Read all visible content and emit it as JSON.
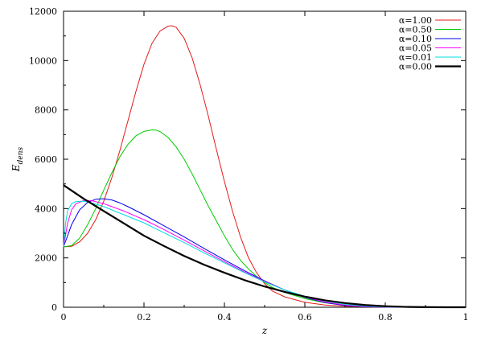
{
  "chart_data": {
    "type": "line",
    "title": "",
    "xlabel": "z",
    "ylabel": "E",
    "ylabel_sub": "dens",
    "xlim": [
      0,
      1
    ],
    "ylim": [
      0,
      12000
    ],
    "x_ticks": [
      0,
      0.2,
      0.4,
      0.6,
      0.8,
      1
    ],
    "x_tick_labels": [
      "0",
      "0.2",
      "0.4",
      "0.6",
      "0.8",
      "1"
    ],
    "y_ticks": [
      0,
      2000,
      4000,
      6000,
      8000,
      10000,
      12000
    ],
    "y_tick_labels": [
      "0",
      "2000",
      "4000",
      "6000",
      "8000",
      "10000",
      "12000"
    ],
    "grid": false,
    "legend_position": "top-right",
    "series": [
      {
        "name": "α=1.00",
        "color": "#e41a1c",
        "x": [
          0,
          0.02,
          0.04,
          0.06,
          0.08,
          0.1,
          0.12,
          0.14,
          0.16,
          0.18,
          0.2,
          0.22,
          0.24,
          0.26,
          0.27,
          0.28,
          0.3,
          0.32,
          0.34,
          0.36,
          0.38,
          0.4,
          0.42,
          0.44,
          0.46,
          0.48,
          0.5,
          0.52,
          0.55,
          0.6,
          0.65,
          0.7,
          0.75,
          0.8,
          0.85,
          0.9,
          1.0
        ],
        "y": [
          2450,
          2470,
          2650,
          3000,
          3550,
          4300,
          5250,
          6350,
          7550,
          8750,
          9850,
          10700,
          11200,
          11400,
          11410,
          11350,
          10900,
          10100,
          9000,
          7750,
          6400,
          5100,
          3900,
          2850,
          2000,
          1400,
          950,
          650,
          420,
          200,
          90,
          40,
          15,
          5,
          2,
          0,
          0
        ]
      },
      {
        "name": "α=0.50",
        "color": "#00cc00",
        "x": [
          0,
          0.02,
          0.04,
          0.06,
          0.08,
          0.1,
          0.12,
          0.14,
          0.16,
          0.18,
          0.2,
          0.22,
          0.23,
          0.24,
          0.26,
          0.28,
          0.3,
          0.32,
          0.34,
          0.36,
          0.38,
          0.4,
          0.42,
          0.44,
          0.46,
          0.48,
          0.5,
          0.52,
          0.55,
          0.6,
          0.65,
          0.7,
          0.75,
          0.8,
          0.85,
          0.9,
          1.0
        ],
        "y": [
          2450,
          2500,
          2800,
          3350,
          4000,
          4750,
          5450,
          6100,
          6600,
          6950,
          7130,
          7190,
          7180,
          7120,
          6880,
          6500,
          6000,
          5400,
          4750,
          4100,
          3500,
          2900,
          2350,
          1900,
          1550,
          1250,
          1000,
          800,
          600,
          350,
          180,
          80,
          30,
          10,
          3,
          0,
          0
        ]
      },
      {
        "name": "α=0.10",
        "color": "#0000ee",
        "x": [
          0,
          0.01,
          0.02,
          0.04,
          0.06,
          0.08,
          0.1,
          0.12,
          0.14,
          0.16,
          0.2,
          0.25,
          0.3,
          0.35,
          0.4,
          0.45,
          0.5,
          0.55,
          0.6,
          0.65,
          0.7,
          0.75,
          0.8,
          0.85,
          1.0
        ],
        "y": [
          2450,
          2900,
          3350,
          3950,
          4250,
          4380,
          4400,
          4350,
          4230,
          4080,
          3750,
          3300,
          2850,
          2380,
          1920,
          1480,
          1070,
          700,
          400,
          190,
          70,
          20,
          5,
          0,
          0
        ]
      },
      {
        "name": "α=0.05",
        "color": "#ff00ff",
        "x": [
          0,
          0.01,
          0.02,
          0.03,
          0.05,
          0.07,
          0.1,
          0.15,
          0.2,
          0.25,
          0.3,
          0.35,
          0.4,
          0.45,
          0.5,
          0.55,
          0.6,
          0.65,
          0.7,
          0.75,
          0.8,
          0.85,
          1.0
        ],
        "y": [
          2450,
          3400,
          3950,
          4180,
          4330,
          4320,
          4200,
          3900,
          3550,
          3150,
          2720,
          2280,
          1850,
          1430,
          1050,
          700,
          420,
          210,
          90,
          30,
          8,
          0,
          0
        ]
      },
      {
        "name": "α=0.01",
        "color": "#00dddd",
        "x": [
          0,
          0.005,
          0.01,
          0.02,
          0.03,
          0.05,
          0.07,
          0.1,
          0.15,
          0.2,
          0.25,
          0.3,
          0.35,
          0.4,
          0.45,
          0.5,
          0.55,
          0.6,
          0.65,
          0.7,
          0.75,
          0.8,
          0.85,
          1.0
        ],
        "y": [
          2450,
          3400,
          3900,
          4200,
          4280,
          4300,
          4230,
          4080,
          3750,
          3420,
          3020,
          2620,
          2200,
          1800,
          1400,
          1030,
          700,
          440,
          250,
          120,
          45,
          12,
          0,
          0
        ]
      },
      {
        "name": "α=0.00",
        "color": "#000000",
        "x": [
          0,
          0.05,
          0.1,
          0.15,
          0.2,
          0.25,
          0.3,
          0.35,
          0.4,
          0.45,
          0.5,
          0.55,
          0.6,
          0.65,
          0.7,
          0.75,
          0.8,
          0.85,
          0.9,
          0.95,
          1.0
        ],
        "y": [
          4950,
          4400,
          3900,
          3400,
          2900,
          2480,
          2080,
          1720,
          1400,
          1100,
          840,
          620,
          430,
          280,
          170,
          90,
          40,
          15,
          5,
          1,
          0
        ]
      }
    ]
  }
}
